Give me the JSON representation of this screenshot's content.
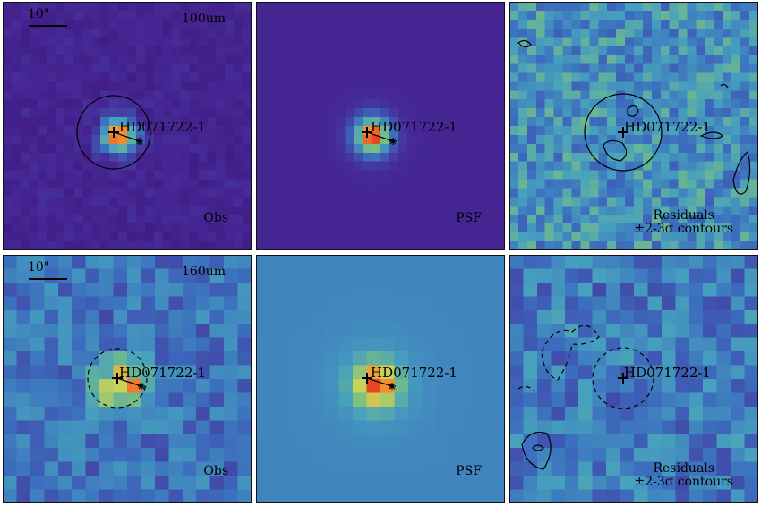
{
  "rows": [
    {
      "band": "100um",
      "scale_label": "10\"",
      "panels": [
        {
          "name": "obs",
          "label": "Obs",
          "label2": "",
          "palette": "obs100"
        },
        {
          "name": "psf",
          "label": "PSF",
          "label2": "",
          "palette": "psf100"
        },
        {
          "name": "residuals",
          "label": "Residuals",
          "label2": "±2-3σ contours",
          "palette": "res100"
        }
      ]
    },
    {
      "band": "160um",
      "scale_label": "10\"",
      "panels": [
        {
          "name": "obs",
          "label": "Obs",
          "label2": "",
          "palette": "obs160"
        },
        {
          "name": "psf",
          "label": "PSF",
          "label2": "",
          "palette": "psf160"
        },
        {
          "name": "residuals",
          "label": "Residuals",
          "label2": "±2-3σ contours",
          "palette": "res160"
        }
      ]
    }
  ],
  "star_name": "HD071722-1",
  "colors": {
    "map_low": "#3b1a8a",
    "map_mid": "#3d7bc4",
    "map_high": "#f08030",
    "peak": "#e74c24",
    "frame": "#111111"
  }
}
